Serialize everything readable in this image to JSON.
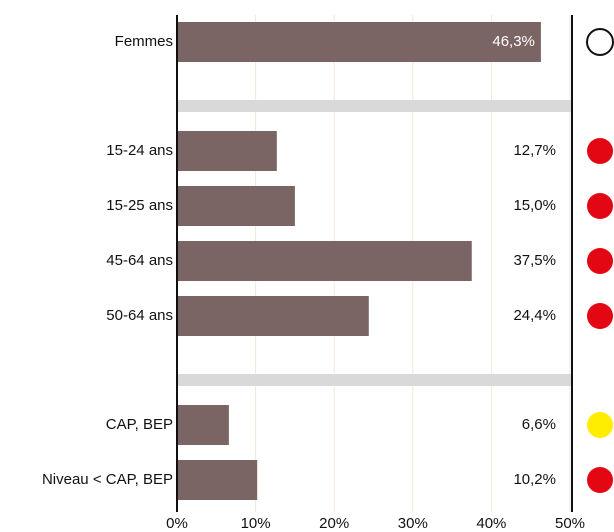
{
  "chart_data": {
    "type": "bar",
    "orientation": "horizontal",
    "color": "#7b6464",
    "groups": [
      {
        "categories": [
          "Femmes"
        ],
        "values": [
          46.3
        ],
        "value_labels": [
          "46,3%"
        ],
        "markers": [
          "#ffffff"
        ]
      },
      {
        "categories": [
          "15-24 ans",
          "15-25 ans",
          "45-64 ans",
          "50-64 ans"
        ],
        "values": [
          12.7,
          15.0,
          37.5,
          24.4
        ],
        "value_labels": [
          "12,7%",
          "15,0%",
          "37,5%",
          "24,4%"
        ],
        "markers": [
          "#e30613",
          "#e30613",
          "#e30613",
          "#e30613"
        ]
      },
      {
        "categories": [
          "CAP, BEP",
          "Niveau < CAP, BEP"
        ],
        "values": [
          6.6,
          10.2
        ],
        "value_labels": [
          "6,6%",
          "10,2%"
        ],
        "markers": [
          "#ffed00",
          "#e30613"
        ]
      }
    ],
    "xlim": [
      0,
      50
    ],
    "xticks": [
      {
        "value": 0,
        "label": "0%"
      },
      {
        "value": 10,
        "label": "10%"
      },
      {
        "value": 20,
        "label": "20%"
      },
      {
        "value": 30,
        "label": "30%"
      },
      {
        "value": 40,
        "label": "40%"
      },
      {
        "value": 50,
        "label": "50%"
      }
    ],
    "grid": true
  }
}
